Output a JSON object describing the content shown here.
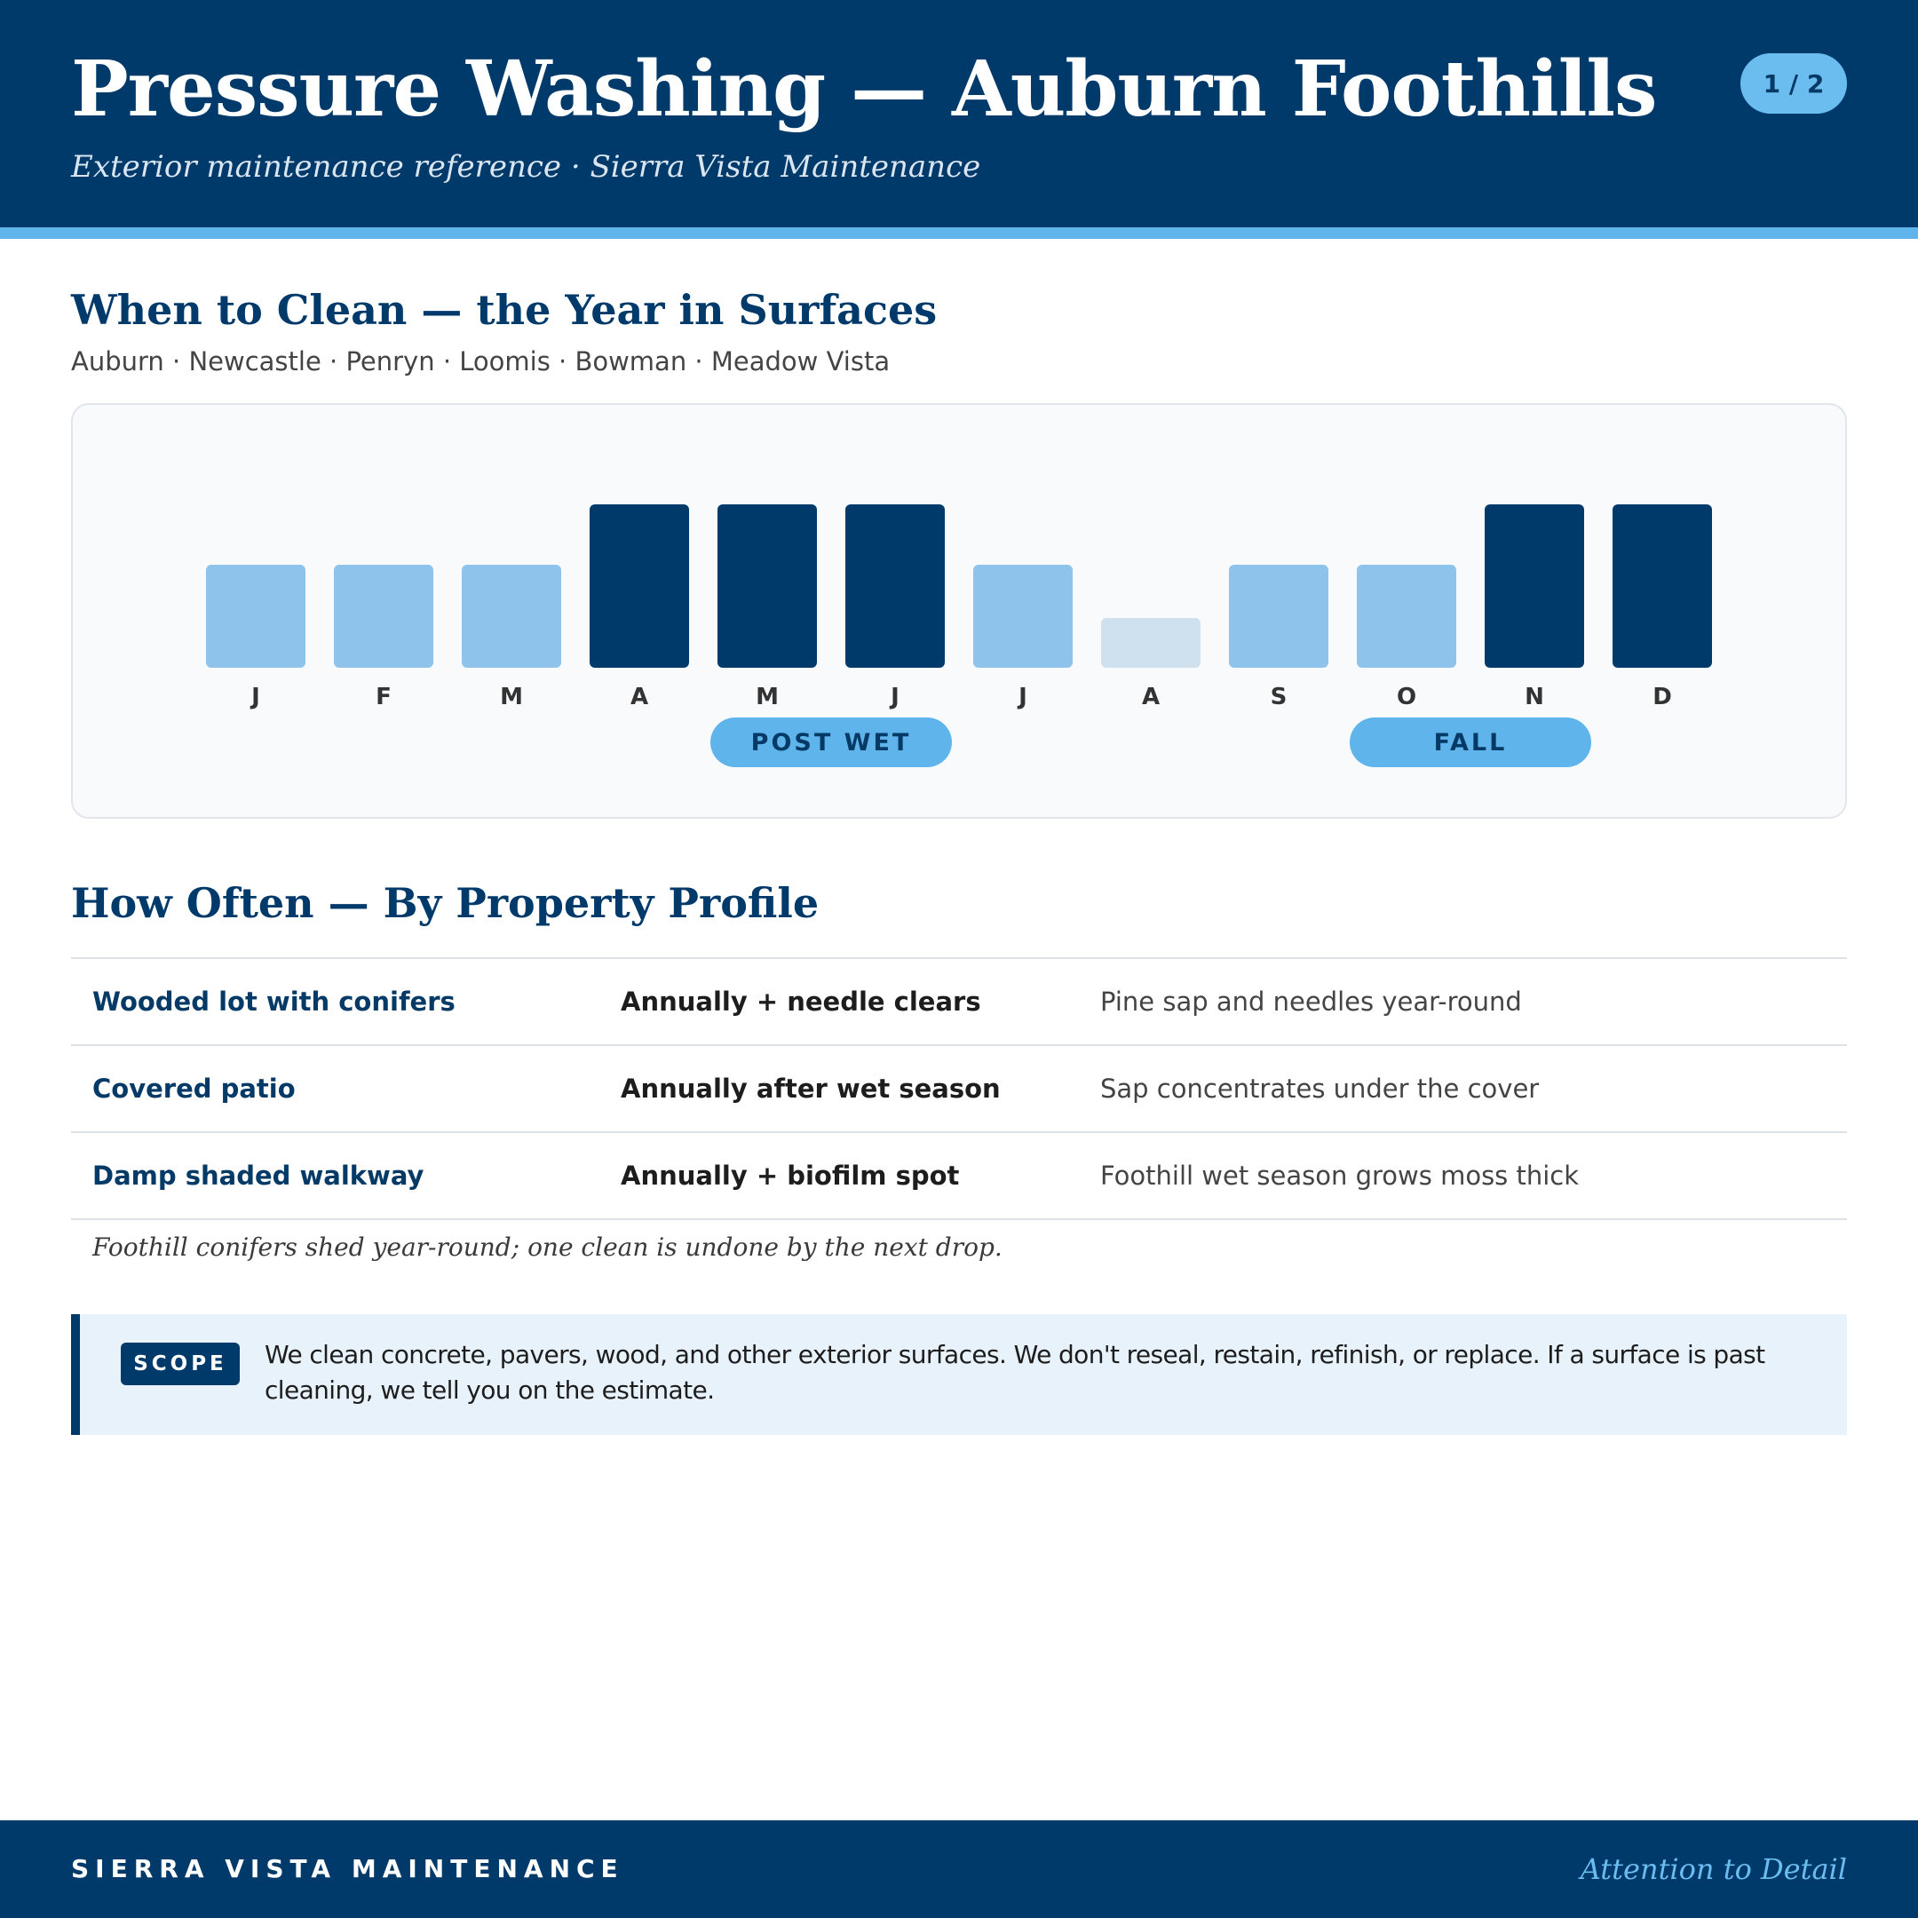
{
  "header": {
    "title": "Pressure Washing — Auburn Foothills",
    "subtitle": "Exterior maintenance reference · Sierra Vista Maintenance",
    "page_indicator": "1 / 2"
  },
  "calendar_section": {
    "title": "When to Clean — the Year in Surfaces",
    "towns": "Auburn · Newcastle · Penryn · Loomis · Bowman · Meadow Vista",
    "seasons": [
      {
        "label": "POST WET"
      },
      {
        "label": "FALL"
      }
    ]
  },
  "chart_data": {
    "type": "bar",
    "categories": [
      "J",
      "F",
      "M",
      "A",
      "M",
      "J",
      "J",
      "A",
      "S",
      "O",
      "N",
      "D"
    ],
    "values": [
      2,
      2,
      2,
      3,
      3,
      3,
      2,
      1,
      2,
      2,
      3,
      3
    ],
    "levels": [
      "mid",
      "mid",
      "mid",
      "high",
      "high",
      "high",
      "mid",
      "low",
      "mid",
      "mid",
      "high",
      "high"
    ],
    "colors": {
      "high": "#003a6b",
      "mid": "#8ec3ec",
      "low": "#cfe0ee"
    },
    "ylim": [
      0,
      3
    ],
    "grid": false
  },
  "frequency_section": {
    "title": "How Often — By Property Profile",
    "rows": [
      {
        "profile": "Wooded lot with conifers",
        "frequency": "Annually + needle clears",
        "note": "Pine sap and needles year-round"
      },
      {
        "profile": "Covered patio",
        "frequency": "Annually after wet season",
        "note": "Sap concentrates under the cover"
      },
      {
        "profile": "Damp shaded walkway",
        "frequency": "Annually + biofilm spot",
        "note": "Foothill wet season grows moss thick"
      }
    ],
    "footnote": "Foothill conifers shed year-round; one clean is undone by the next drop."
  },
  "scope": {
    "tag": "SCOPE",
    "text": "We clean concrete, pavers, wood, and other exterior surfaces. We don't reseal, restain, refinish, or replace. If a surface is past cleaning, we tell you on the estimate."
  },
  "footer": {
    "brand": "SIERRA VISTA MAINTENANCE",
    "tagline": "Attention to Detail"
  }
}
